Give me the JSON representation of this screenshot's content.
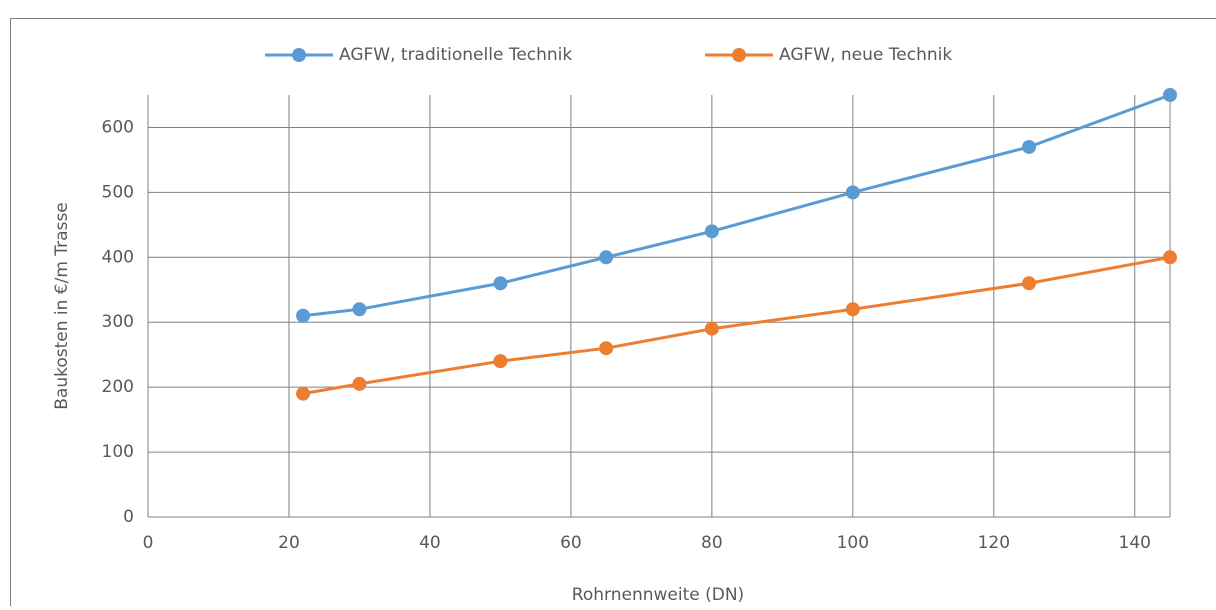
{
  "chart_data": {
    "type": "line",
    "x_label": "Rohrnennweite (DN)",
    "y_label": "Baukosten in €/m Trasse",
    "x": [
      22,
      30,
      50,
      65,
      80,
      100,
      125,
      145
    ],
    "series": [
      {
        "name": "AGFW, traditionelle Technik",
        "color": "#5b9bd5",
        "values": [
          310,
          320,
          360,
          400,
          440,
          500,
          570,
          650
        ]
      },
      {
        "name": "AGFW, neue Technik",
        "color": "#ed7d31",
        "values": [
          190,
          205,
          240,
          260,
          290,
          320,
          360,
          400
        ]
      }
    ],
    "xlim": [
      0,
      145
    ],
    "xticks": [
      0,
      20,
      40,
      60,
      80,
      100,
      120,
      140
    ],
    "ylim": [
      0,
      650
    ],
    "yticks": [
      0,
      100,
      200,
      300,
      400,
      500,
      600
    ],
    "grid": true,
    "legend": "top"
  }
}
